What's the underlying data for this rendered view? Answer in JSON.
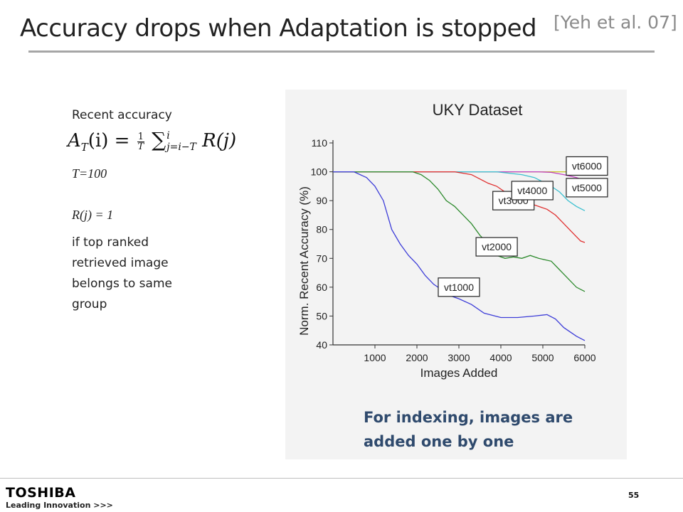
{
  "slide": {
    "title": "Accuracy drops when Adaptation is stopped",
    "citation": "[Yeh et al. 07]",
    "page_number": "55"
  },
  "left_panel": {
    "heading": "Recent accuracy",
    "formula": {
      "lhs": "A",
      "lhs_sub": "T",
      "lhs_arg": "(i) =",
      "frac_num": "1",
      "frac_den": "T",
      "sum": "∑",
      "sum_top": "i",
      "sum_bottom": "j=i−T",
      "rhs": "R(j)"
    },
    "t_value": "T=100",
    "rj_value": "R(j) = 1",
    "description": [
      "if top ranked",
      "retrieved image",
      "belongs to same",
      "group"
    ]
  },
  "chart_data": {
    "type": "line",
    "title": "UKY Dataset",
    "xlabel": "Images Added",
    "ylabel": "Norm. Recent Accuracy (%)",
    "xlim": [
      0,
      6000
    ],
    "ylim": [
      40,
      110
    ],
    "xticks": [
      1000,
      2000,
      3000,
      4000,
      5000,
      6000
    ],
    "yticks": [
      40,
      50,
      60,
      70,
      80,
      90,
      100,
      110
    ],
    "series": [
      {
        "name": "vt1000",
        "color": "#3d3dd8",
        "points": [
          [
            0,
            100
          ],
          [
            500,
            100
          ],
          [
            800,
            98
          ],
          [
            1000,
            95
          ],
          [
            1200,
            90
          ],
          [
            1400,
            80
          ],
          [
            1600,
            75
          ],
          [
            1800,
            71
          ],
          [
            2000,
            68
          ],
          [
            2200,
            64
          ],
          [
            2400,
            61
          ],
          [
            2600,
            59
          ],
          [
            2800,
            57
          ],
          [
            3000,
            56
          ],
          [
            3300,
            54
          ],
          [
            3600,
            51
          ],
          [
            4000,
            49.5
          ],
          [
            4400,
            49.5
          ],
          [
            4800,
            50
          ],
          [
            5100,
            50.5
          ],
          [
            5300,
            49
          ],
          [
            5500,
            46
          ],
          [
            5800,
            43
          ],
          [
            6000,
            41.5
          ]
        ]
      },
      {
        "name": "vt2000",
        "color": "#2d8a2d",
        "points": [
          [
            0,
            100
          ],
          [
            1900,
            100
          ],
          [
            2100,
            99
          ],
          [
            2300,
            97
          ],
          [
            2500,
            94
          ],
          [
            2700,
            90
          ],
          [
            2900,
            88
          ],
          [
            3100,
            85
          ],
          [
            3300,
            82
          ],
          [
            3500,
            78
          ],
          [
            3700,
            75
          ],
          [
            3900,
            71
          ],
          [
            4100,
            70
          ],
          [
            4300,
            70.5
          ],
          [
            4500,
            70
          ],
          [
            4700,
            71
          ],
          [
            4900,
            70
          ],
          [
            5200,
            69
          ],
          [
            5400,
            66
          ],
          [
            5600,
            63
          ],
          [
            5800,
            60
          ],
          [
            6000,
            58.5
          ]
        ]
      },
      {
        "name": "vt3000",
        "color": "#e03030",
        "points": [
          [
            0,
            100
          ],
          [
            2900,
            100
          ],
          [
            3100,
            99.5
          ],
          [
            3300,
            99
          ],
          [
            3500,
            97.5
          ],
          [
            3700,
            96
          ],
          [
            3900,
            95
          ],
          [
            4100,
            93
          ],
          [
            4300,
            92
          ],
          [
            4500,
            91
          ],
          [
            4700,
            89
          ],
          [
            4900,
            88
          ],
          [
            5100,
            87
          ],
          [
            5300,
            85
          ],
          [
            5500,
            82
          ],
          [
            5700,
            79
          ],
          [
            5900,
            76
          ],
          [
            6000,
            75.5
          ]
        ]
      },
      {
        "name": "vt4000",
        "color": "#3cc0d0",
        "points": [
          [
            0,
            100
          ],
          [
            3900,
            100
          ],
          [
            4200,
            99.5
          ],
          [
            4500,
            99
          ],
          [
            4800,
            98
          ],
          [
            5000,
            96.5
          ],
          [
            5200,
            95
          ],
          [
            5400,
            93
          ],
          [
            5600,
            90
          ],
          [
            5800,
            88
          ],
          [
            6000,
            86.5
          ]
        ]
      },
      {
        "name": "vt5000",
        "color": "#c040c0",
        "points": [
          [
            0,
            100
          ],
          [
            4900,
            100
          ],
          [
            5200,
            99.8
          ],
          [
            5500,
            99
          ],
          [
            5800,
            98
          ],
          [
            6000,
            97
          ]
        ]
      },
      {
        "name": "vt6000",
        "color": "#c8c820",
        "points": [
          [
            0,
            100
          ],
          [
            6000,
            100
          ]
        ]
      }
    ],
    "annotations": [
      {
        "text": "vt1000",
        "x": 3000,
        "y": 60
      },
      {
        "text": "vt2000",
        "x": 3900,
        "y": 74
      },
      {
        "text": "vt3000",
        "x": 4300,
        "y": 90
      },
      {
        "text": "vt4000",
        "x": 4750,
        "y": 93.5
      },
      {
        "text": "vt5000",
        "x": 6050,
        "y": 94.5
      },
      {
        "text": "vt6000",
        "x": 6050,
        "y": 102
      }
    ],
    "caption": [
      "For indexing, images are",
      "added one by one"
    ]
  },
  "footer": {
    "brand": "TOSHIBA",
    "tagline": "Leading Innovation >>>"
  }
}
